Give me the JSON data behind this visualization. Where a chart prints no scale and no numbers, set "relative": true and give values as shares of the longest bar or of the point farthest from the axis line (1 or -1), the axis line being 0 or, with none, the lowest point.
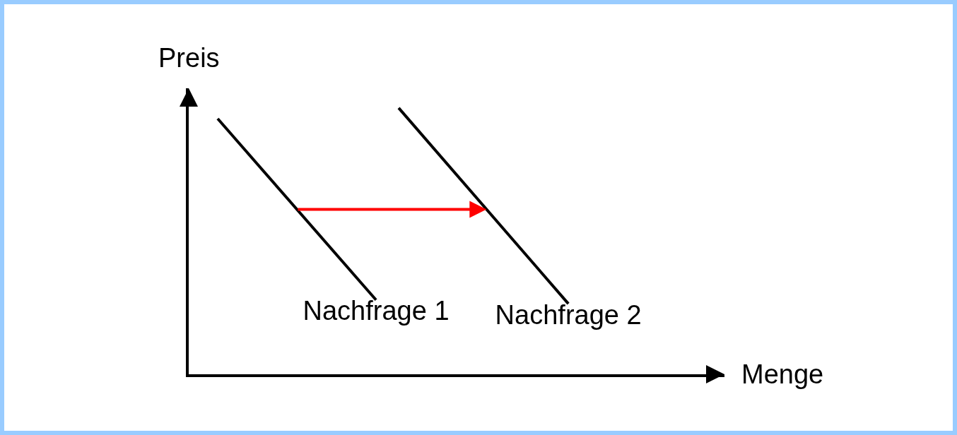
{
  "chart_data": {
    "type": "line",
    "relative": true,
    "annotations": [
      "Menge"
    ],
    "ylabel": "Preis",
    "legend": false,
    "grid": false,
    "marker": "none",
    "line_style": "solid",
    "categories": [
      null,
      null,
      null,
      null,
      null,
      null,
      null,
      null,
      null,
      null,
      null,
      null,
      null,
      null,
      null,
      null,
      null,
      null,
      null,
      null,
      null,
      null,
      null,
      null,
      null,
      null,
      null,
      null,
      null,
      null,
      null,
      null
    ],
    "series": [
      {
        "name": "Nachfrage 1",
        "color": "#000000",
        "values": [
          0.96,
          null,
          null,
          null,
          null,
          null,
          null,
          null,
          null,
          null,
          null,
          null,
          null,
          null,
          0.279,
          null,
          null,
          null,
          null,
          null,
          null,
          null,
          null,
          null,
          null,
          null,
          null,
          null,
          null,
          null,
          null,
          null
        ]
      },
      {
        "name": "Nachfrage 2",
        "color": "#000000",
        "values": [
          null,
          null,
          null,
          null,
          null,
          null,
          null,
          null,
          null,
          null,
          null,
          null,
          null,
          null,
          null,
          null,
          1,
          null,
          null,
          null,
          null,
          null,
          null,
          null,
          null,
          null,
          null,
          null,
          null,
          null,
          null,
          0.265
        ]
      }
    ]
  }
}
